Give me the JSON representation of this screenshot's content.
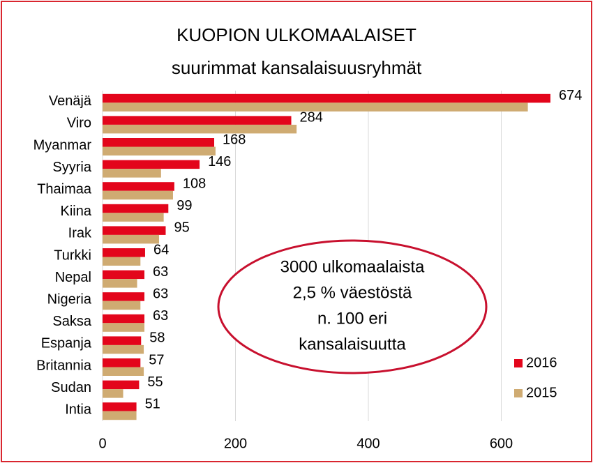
{
  "chart_data": {
    "type": "barh",
    "title": "KUOPION ULKOMAALAISET",
    "subtitle": "suurimmat kansalaisuusryhmät",
    "categories": [
      "Venäjä",
      "Viro",
      "Myanmar",
      "Syyria",
      "Thaimaa",
      "Kiina",
      "Irak",
      "Turkki",
      "Nepal",
      "Nigeria",
      "Saksa",
      "Espanja",
      "Britannia",
      "Sudan",
      "Intia"
    ],
    "series": [
      {
        "name": "2016",
        "color": "#e3051b",
        "values": [
          674,
          284,
          168,
          146,
          108,
          99,
          95,
          64,
          63,
          63,
          63,
          58,
          57,
          55,
          51
        ]
      },
      {
        "name": "2015",
        "color": "#cfab72",
        "values": [
          640,
          292,
          170,
          88,
          106,
          92,
          85,
          57,
          52,
          57,
          63,
          62,
          62,
          31,
          51
        ]
      }
    ],
    "xlim": [
      0,
      700
    ],
    "xticks": [
      0,
      200,
      400,
      600
    ],
    "grid": true,
    "annotation": [
      "3000 ulkomaalaista",
      "2,5 % väestöstä",
      "n. 100  eri",
      "kansalaisuutta"
    ]
  }
}
